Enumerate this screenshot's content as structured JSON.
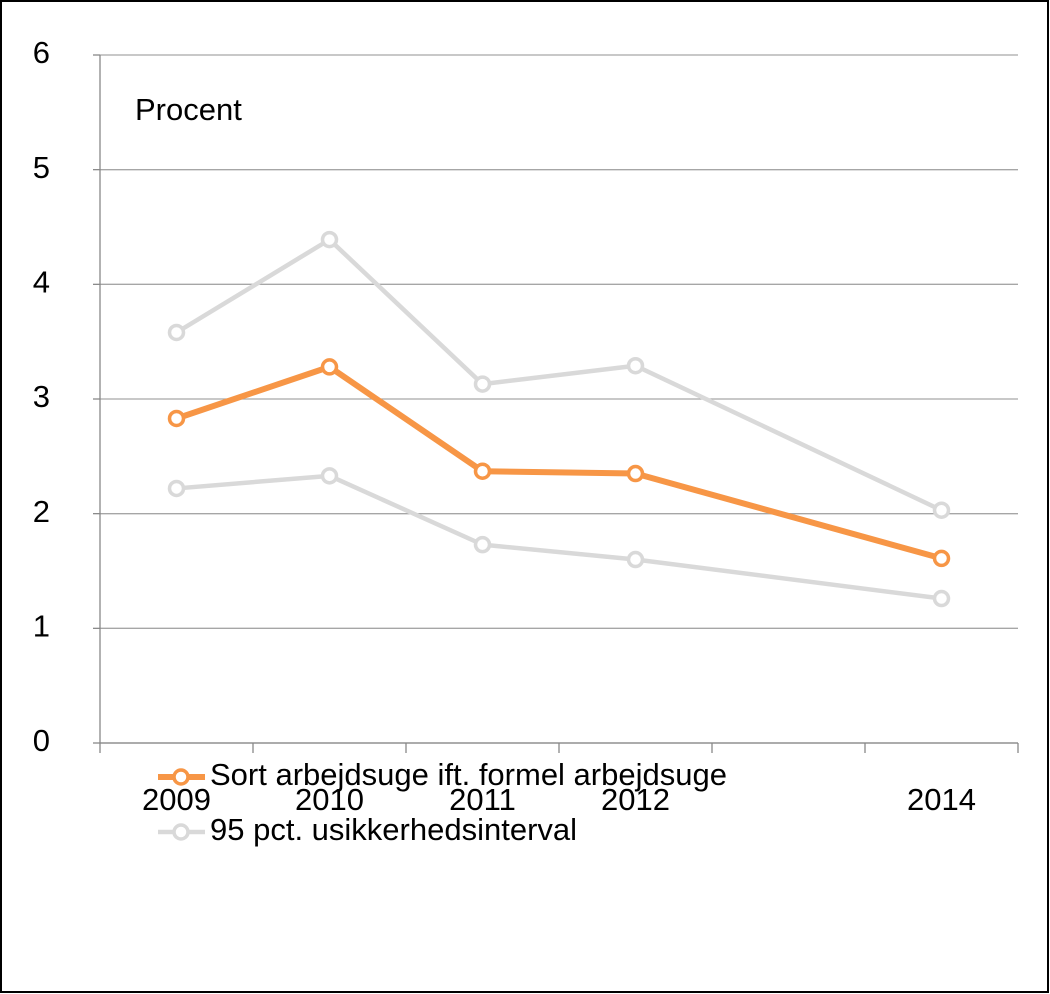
{
  "chart_data": {
    "type": "line",
    "y_label": "Procent",
    "x": [
      2009,
      2010,
      2011,
      2012,
      2014
    ],
    "xlim": [
      2008.5,
      2014.5
    ],
    "series": [
      {
        "name": "Sort arbejdsuge ift. formel arbejdsuge",
        "color": "#f79646",
        "values": [
          2.83,
          3.28,
          2.37,
          2.35,
          1.61
        ]
      },
      {
        "name": "95 pct. usikkerhedsinterval",
        "color": "#d9d9d9",
        "values": [
          3.58,
          4.39,
          3.13,
          3.29,
          2.03
        ]
      },
      {
        "color": "#d9d9d9",
        "values": [
          2.22,
          2.33,
          1.73,
          1.6,
          1.26
        ]
      }
    ],
    "ylim": [
      0,
      6
    ],
    "yticks": [
      0,
      1,
      2,
      3,
      4,
      5,
      6
    ],
    "grid": true
  }
}
